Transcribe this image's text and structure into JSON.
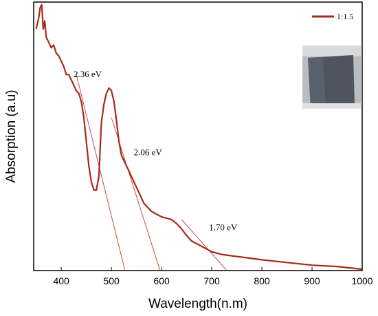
{
  "chart_data": {
    "type": "line",
    "xlabel": "Wavelength(n.m)",
    "ylabel": "Absorption (a.u)",
    "xlim": [
      345,
      1000
    ],
    "ylim": [
      0,
      1
    ],
    "x_ticks": [
      400,
      500,
      600,
      700,
      800,
      900,
      1000
    ],
    "y_ticks_shown": false,
    "grid": false,
    "legend_position": "top-right",
    "colors": {
      "series": "#a52a1a",
      "tangent": "#c0392b"
    },
    "series": [
      {
        "name": "1:1.5",
        "x": [
          350,
          355,
          358,
          361,
          364,
          367,
          370,
          375,
          380,
          385,
          390,
          395,
          400,
          405,
          410,
          415,
          420,
          425,
          430,
          435,
          440,
          445,
          450,
          455,
          460,
          465,
          470,
          475,
          480,
          485,
          490,
          495,
          500,
          505,
          510,
          515,
          520,
          525,
          530,
          535,
          540,
          545,
          550,
          555,
          560,
          565,
          570,
          575,
          580,
          590,
          600,
          610,
          620,
          630,
          640,
          650,
          660,
          670,
          680,
          690,
          700,
          720,
          740,
          760,
          780,
          800,
          850,
          900,
          950,
          1000
        ],
        "y": [
          0.9,
          0.94,
          0.98,
          0.99,
          0.9,
          0.93,
          0.87,
          0.85,
          0.83,
          0.84,
          0.81,
          0.8,
          0.78,
          0.76,
          0.73,
          0.73,
          0.71,
          0.69,
          0.67,
          0.66,
          0.63,
          0.57,
          0.48,
          0.39,
          0.33,
          0.3,
          0.3,
          0.35,
          0.55,
          0.62,
          0.66,
          0.68,
          0.67,
          0.63,
          0.56,
          0.48,
          0.43,
          0.41,
          0.39,
          0.37,
          0.35,
          0.33,
          0.31,
          0.29,
          0.27,
          0.25,
          0.24,
          0.23,
          0.22,
          0.21,
          0.2,
          0.195,
          0.19,
          0.175,
          0.155,
          0.13,
          0.11,
          0.1,
          0.09,
          0.08,
          0.07,
          0.06,
          0.055,
          0.05,
          0.045,
          0.04,
          0.03,
          0.02,
          0.015,
          0.005
        ]
      }
    ],
    "tangent_lines": [
      {
        "from": [
          430,
          0.73
        ],
        "to": [
          527,
          -0.02
        ]
      },
      {
        "from": [
          500,
          0.57
        ],
        "to": [
          597,
          -0.02
        ]
      },
      {
        "from": [
          640,
          0.19
        ],
        "to": [
          730,
          -0.02
        ]
      }
    ],
    "annotations": [
      {
        "text": "2.36 eV",
        "x": 430,
        "y": 0.72
      },
      {
        "text": "2.06 eV",
        "x": 550,
        "y": 0.43
      },
      {
        "text": "1.70 eV",
        "x": 700,
        "y": 0.15
      }
    ],
    "inset_image": "sample-photo"
  }
}
